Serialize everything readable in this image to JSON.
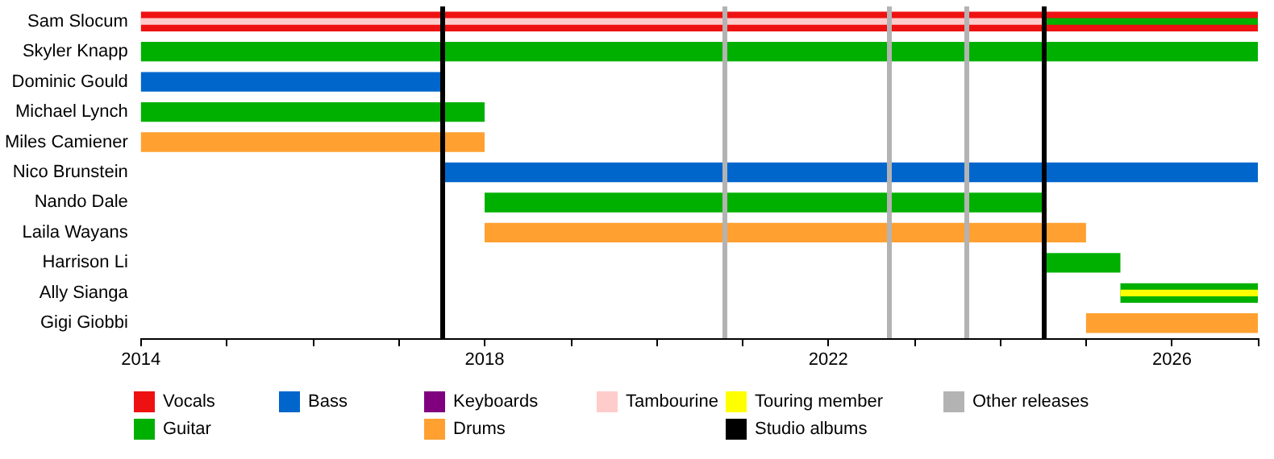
{
  "chart_data": {
    "type": "bar",
    "orientation": "horizontal",
    "categories": [
      "Sam Slocum",
      "Skyler Knapp",
      "Dominic Gould",
      "Michael Lynch",
      "Miles Camiener",
      "Nico Brunstein",
      "Nando Dale",
      "Laila Wayans",
      "Harrison Li",
      "Ally Sianga",
      "Gigi Giobbi"
    ],
    "series": [
      {
        "name": "Vocals",
        "color": "#ee1111",
        "base": [
          2014,
          null,
          null,
          null,
          null,
          null,
          null,
          null,
          null,
          null,
          null
        ],
        "values": [
          13,
          null,
          null,
          null,
          null,
          null,
          null,
          null,
          null,
          null,
          null
        ]
      },
      {
        "name": "Guitar",
        "color": "#00b000",
        "base": [
          2024.5,
          2014,
          null,
          2014,
          null,
          null,
          2018,
          null,
          2024.5,
          2025.4,
          null
        ],
        "values": [
          2.5,
          13,
          null,
          4,
          null,
          null,
          6.5,
          null,
          0.9,
          1.6,
          null
        ]
      },
      {
        "name": "Bass",
        "color": "#0066cc",
        "base": [
          null,
          null,
          2014,
          null,
          null,
          2017.5,
          null,
          null,
          null,
          null,
          null
        ],
        "values": [
          null,
          null,
          3.5,
          null,
          null,
          9.5,
          null,
          null,
          null,
          null,
          null
        ]
      },
      {
        "name": "Keyboards",
        "color": "#800080",
        "base": [
          null,
          null,
          null,
          null,
          null,
          null,
          null,
          null,
          null,
          null,
          null
        ],
        "values": [
          null,
          null,
          null,
          null,
          null,
          null,
          null,
          null,
          null,
          null,
          null
        ]
      },
      {
        "name": "Drums",
        "color": "#ffa030",
        "base": [
          null,
          null,
          null,
          null,
          2014,
          null,
          null,
          2018,
          null,
          null,
          2025
        ],
        "values": [
          null,
          null,
          null,
          null,
          4,
          null,
          null,
          7,
          null,
          null,
          2
        ]
      },
      {
        "name": "Tambourine",
        "color": "#ffcccc",
        "base": [
          2014,
          null,
          null,
          null,
          null,
          null,
          null,
          null,
          null,
          null,
          null
        ],
        "values": [
          10.5,
          null,
          null,
          null,
          null,
          null,
          null,
          null,
          null,
          null,
          null
        ]
      },
      {
        "name": "Touring member",
        "color": "#ffff00",
        "base": [
          null,
          null,
          null,
          null,
          null,
          null,
          null,
          null,
          null,
          2025.4,
          null
        ],
        "values": [
          null,
          null,
          null,
          null,
          null,
          null,
          null,
          null,
          null,
          1.6,
          null
        ]
      }
    ],
    "ref_lines": [
      {
        "axis": "x",
        "value": 2017.5,
        "label": "Studio albums",
        "color": "#000000"
      },
      {
        "axis": "x",
        "value": 2024.5,
        "color": "#000000"
      },
      {
        "axis": "x",
        "value": 2020.8,
        "label": "Other releases",
        "color": "#b3b3b3"
      },
      {
        "axis": "x",
        "value": 2022.7,
        "color": "#b3b3b3"
      },
      {
        "axis": "x",
        "value": 2023.6,
        "color": "#b3b3b3"
      }
    ],
    "xlim": [
      2014,
      2027
    ],
    "xticks": [
      2014,
      {
        "value": 2015,
        "label": null
      },
      {
        "value": 2016,
        "label": null
      },
      {
        "value": 2017,
        "label": null
      },
      2018,
      {
        "value": 2019,
        "label": null
      },
      {
        "value": 2020,
        "label": null
      },
      {
        "value": 2021,
        "label": null
      },
      2022,
      {
        "value": 2023,
        "label": null
      },
      {
        "value": 2024,
        "label": null
      },
      {
        "value": 2025,
        "label": null
      },
      2026,
      {
        "value": 2027,
        "label": null
      }
    ],
    "grid": false,
    "legend": "bottom"
  }
}
